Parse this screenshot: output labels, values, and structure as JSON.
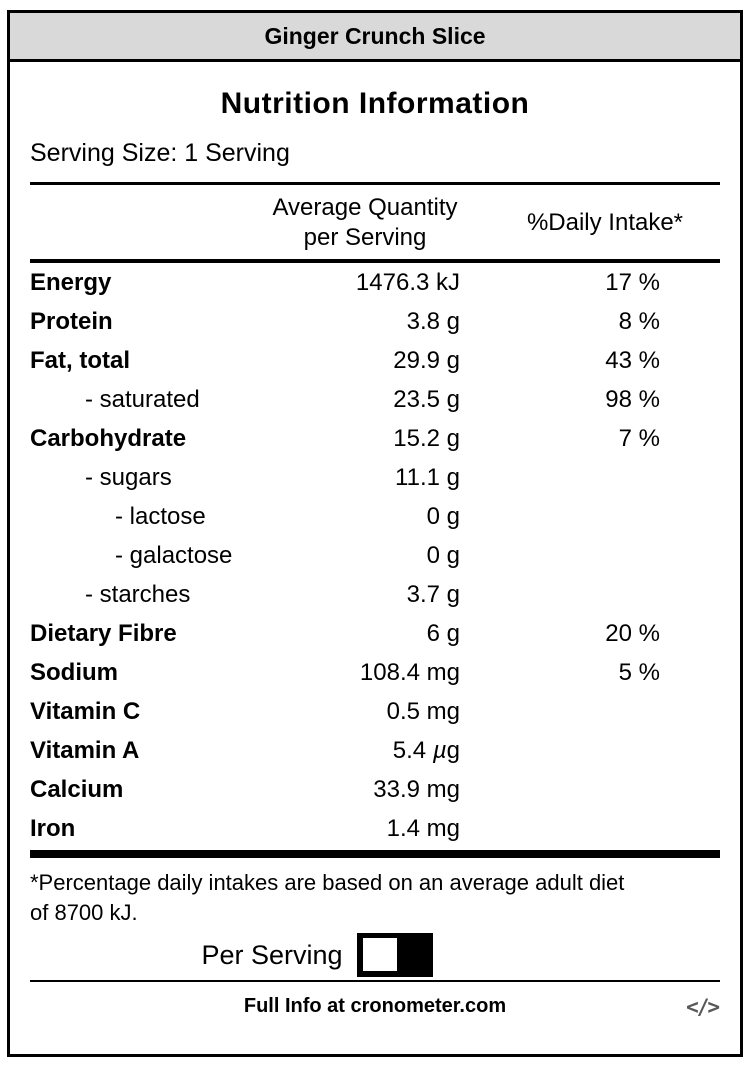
{
  "header": {
    "title": "Ginger Crunch Slice"
  },
  "label": {
    "heading": "Nutrition Information",
    "serving_size": "Serving Size: 1 Serving",
    "columns": {
      "quantity_line1": "Average Quantity",
      "quantity_line2": "per Serving",
      "daily_intake": "%Daily Intake*"
    },
    "rows": [
      {
        "name": "Energy",
        "qty": "1476.3 kJ",
        "pct": "17 %",
        "bold": true,
        "indent": 0
      },
      {
        "name": "Protein",
        "qty": "3.8 g",
        "pct": "8 %",
        "bold": true,
        "indent": 0
      },
      {
        "name": "Fat, total",
        "qty": "29.9 g",
        "pct": "43 %",
        "bold": true,
        "indent": 0
      },
      {
        "name": "- saturated",
        "qty": "23.5 g",
        "pct": "98 %",
        "bold": false,
        "indent": 1
      },
      {
        "name": "Carbohydrate",
        "qty": "15.2 g",
        "pct": "7 %",
        "bold": true,
        "indent": 0
      },
      {
        "name": "- sugars",
        "qty": "11.1 g",
        "pct": "",
        "bold": false,
        "indent": 1
      },
      {
        "name": "- lactose",
        "qty": "0 g",
        "pct": "",
        "bold": false,
        "indent": 2
      },
      {
        "name": "- galactose",
        "qty": "0 g",
        "pct": "",
        "bold": false,
        "indent": 2
      },
      {
        "name": "- starches",
        "qty": "3.7 g",
        "pct": "",
        "bold": false,
        "indent": 1
      },
      {
        "name": "Dietary Fibre",
        "qty": "6 g",
        "pct": "20 %",
        "bold": true,
        "indent": 0
      },
      {
        "name": "Sodium",
        "qty": "108.4 mg",
        "pct": "5 %",
        "bold": true,
        "indent": 0
      },
      {
        "name": "Vitamin C",
        "qty": "0.5 mg",
        "pct": "",
        "bold": true,
        "indent": 0
      },
      {
        "name": "Vitamin A",
        "qty": "5.4 µg",
        "pct": "",
        "bold": true,
        "indent": 0
      },
      {
        "name": "Calcium",
        "qty": "33.9 mg",
        "pct": "",
        "bold": true,
        "indent": 0
      },
      {
        "name": "Iron",
        "qty": "1.4 mg",
        "pct": "",
        "bold": true,
        "indent": 0
      }
    ],
    "footnote_line1": "*Percentage daily intakes are based on an average adult diet",
    "footnote_line2": "of 8700 kJ.",
    "per_serving_label": "Per Serving",
    "toggle_state": "per-serving",
    "footer_text": "Full Info at cronometer.com",
    "embed_icon": "</>"
  },
  "colors": {
    "title_bar_bg": "#d9d9d9",
    "border": "#000000",
    "text": "#000000",
    "embed_icon_grey": "#58585a",
    "toggle_bg": "#000000",
    "toggle_knob": "#ffffff"
  }
}
